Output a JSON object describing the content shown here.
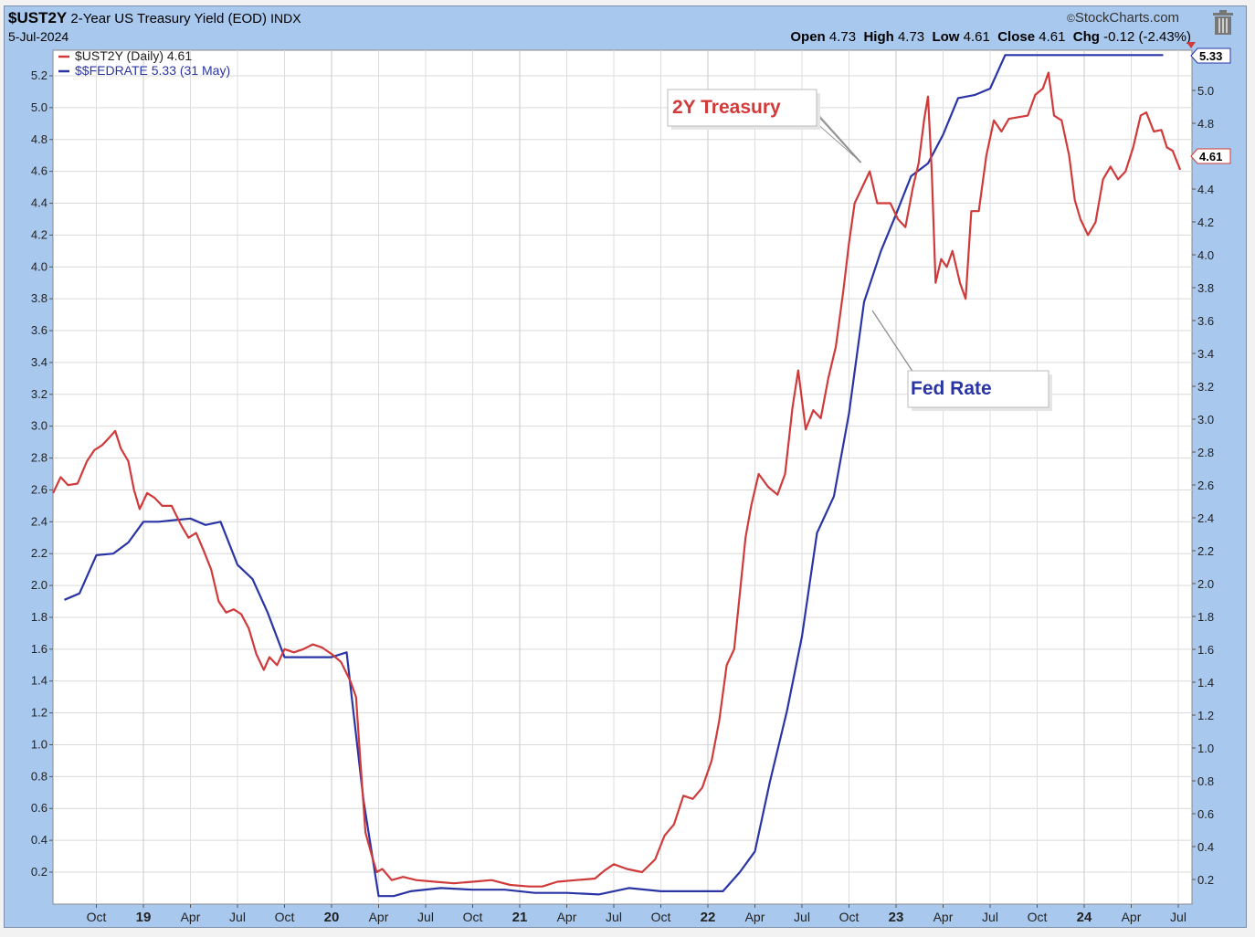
{
  "header": {
    "symbol": "$UST2Y",
    "description": "2-Year US Treasury Yield (EOD)",
    "exchange": "INDX",
    "date": "5-Jul-2024",
    "brand": "StockCharts.com",
    "open_label": "Open",
    "open": "4.73",
    "high_label": "High",
    "high": "4.73",
    "low_label": "Low",
    "low": "4.61",
    "close_label": "Close",
    "close": "4.61",
    "chg_label": "Chg",
    "chg": "-0.12 (-2.43%)"
  },
  "legend": {
    "ust2y": "$UST2Y (Daily) 4.61",
    "fedrate": "$$FEDRATE 5.33 (31 May)"
  },
  "annotations": {
    "treasury": "2Y Treasury",
    "fed": "Fed Rate"
  },
  "last_values": {
    "fed": "5.33",
    "ust2y": "4.61"
  },
  "colors": {
    "ust2y": "#d03a3a",
    "fedrate": "#2a35a5",
    "bg": "#a9c8ee"
  },
  "icons": {
    "brand": "copyright-icon",
    "trash": "trash-icon"
  },
  "chart_data": {
    "type": "line",
    "title": "$UST2Y 2-Year US Treasury Yield (EOD) INDX",
    "ylim": [
      0,
      5.35
    ],
    "y_ticks_left": [
      "0.2",
      "0.4",
      "0.6",
      "0.8",
      "1.0",
      "1.2",
      "1.4",
      "1.6",
      "1.8",
      "2.0",
      "2.2",
      "2.4",
      "2.6",
      "2.8",
      "3.0",
      "3.2",
      "3.4",
      "3.6",
      "3.8",
      "4.0",
      "4.2",
      "4.4",
      "4.6",
      "4.8",
      "5.0",
      "5.2"
    ],
    "y_ticks_right": [
      "0.2",
      "0.4",
      "0.6",
      "0.8",
      "1.0",
      "1.2",
      "1.4",
      "1.6",
      "1.8",
      "2.0",
      "2.2",
      "2.4",
      "2.6",
      "2.8",
      "3.0",
      "3.2",
      "3.4",
      "3.6",
      "3.8",
      "4.0",
      "4.2",
      "4.4",
      "4.6",
      "4.8",
      "5.0"
    ],
    "x_ticks": [
      {
        "t": 2018.75,
        "label": "Oct",
        "bold": false
      },
      {
        "t": 2019.0,
        "label": "19",
        "bold": true
      },
      {
        "t": 2019.25,
        "label": "Apr",
        "bold": false
      },
      {
        "t": 2019.5,
        "label": "Jul",
        "bold": false
      },
      {
        "t": 2019.75,
        "label": "Oct",
        "bold": false
      },
      {
        "t": 2020.0,
        "label": "20",
        "bold": true
      },
      {
        "t": 2020.25,
        "label": "Apr",
        "bold": false
      },
      {
        "t": 2020.5,
        "label": "Jul",
        "bold": false
      },
      {
        "t": 2020.75,
        "label": "Oct",
        "bold": false
      },
      {
        "t": 2021.0,
        "label": "21",
        "bold": true
      },
      {
        "t": 2021.25,
        "label": "Apr",
        "bold": false
      },
      {
        "t": 2021.5,
        "label": "Jul",
        "bold": false
      },
      {
        "t": 2021.75,
        "label": "Oct",
        "bold": false
      },
      {
        "t": 2022.0,
        "label": "22",
        "bold": true
      },
      {
        "t": 2022.25,
        "label": "Apr",
        "bold": false
      },
      {
        "t": 2022.5,
        "label": "Jul",
        "bold": false
      },
      {
        "t": 2022.75,
        "label": "Oct",
        "bold": false
      },
      {
        "t": 2023.0,
        "label": "23",
        "bold": true
      },
      {
        "t": 2023.25,
        "label": "Apr",
        "bold": false
      },
      {
        "t": 2023.5,
        "label": "Jul",
        "bold": false
      },
      {
        "t": 2023.75,
        "label": "Oct",
        "bold": false
      },
      {
        "t": 2024.0,
        "label": "24",
        "bold": true
      },
      {
        "t": 2024.25,
        "label": "Apr",
        "bold": false
      },
      {
        "t": 2024.5,
        "label": "Jul",
        "bold": false
      }
    ],
    "grid": true,
    "series": [
      {
        "name": "$UST2Y (Daily) 4.61",
        "color": "#d03a3a",
        "points": [
          [
            2018.52,
            2.58
          ],
          [
            2018.56,
            2.68
          ],
          [
            2018.6,
            2.63
          ],
          [
            2018.65,
            2.64
          ],
          [
            2018.7,
            2.78
          ],
          [
            2018.74,
            2.85
          ],
          [
            2018.78,
            2.88
          ],
          [
            2018.82,
            2.93
          ],
          [
            2018.85,
            2.97
          ],
          [
            2018.88,
            2.86
          ],
          [
            2018.92,
            2.78
          ],
          [
            2018.95,
            2.6
          ],
          [
            2018.98,
            2.48
          ],
          [
            2019.02,
            2.58
          ],
          [
            2019.06,
            2.55
          ],
          [
            2019.1,
            2.5
          ],
          [
            2019.15,
            2.5
          ],
          [
            2019.2,
            2.38
          ],
          [
            2019.24,
            2.3
          ],
          [
            2019.28,
            2.33
          ],
          [
            2019.32,
            2.22
          ],
          [
            2019.36,
            2.1
          ],
          [
            2019.4,
            1.9
          ],
          [
            2019.44,
            1.83
          ],
          [
            2019.48,
            1.85
          ],
          [
            2019.52,
            1.82
          ],
          [
            2019.56,
            1.73
          ],
          [
            2019.6,
            1.57
          ],
          [
            2019.64,
            1.47
          ],
          [
            2019.67,
            1.55
          ],
          [
            2019.71,
            1.5
          ],
          [
            2019.75,
            1.6
          ],
          [
            2019.8,
            1.58
          ],
          [
            2019.85,
            1.6
          ],
          [
            2019.9,
            1.63
          ],
          [
            2019.95,
            1.61
          ],
          [
            2020.0,
            1.57
          ],
          [
            2020.05,
            1.52
          ],
          [
            2020.1,
            1.4
          ],
          [
            2020.13,
            1.3
          ],
          [
            2020.15,
            0.95
          ],
          [
            2020.18,
            0.45
          ],
          [
            2020.21,
            0.32
          ],
          [
            2020.24,
            0.2
          ],
          [
            2020.27,
            0.22
          ],
          [
            2020.32,
            0.15
          ],
          [
            2020.38,
            0.17
          ],
          [
            2020.45,
            0.15
          ],
          [
            2020.55,
            0.14
          ],
          [
            2020.65,
            0.13
          ],
          [
            2020.75,
            0.14
          ],
          [
            2020.85,
            0.15
          ],
          [
            2020.95,
            0.12
          ],
          [
            2021.05,
            0.11
          ],
          [
            2021.12,
            0.11
          ],
          [
            2021.2,
            0.14
          ],
          [
            2021.3,
            0.15
          ],
          [
            2021.4,
            0.16
          ],
          [
            2021.45,
            0.21
          ],
          [
            2021.5,
            0.25
          ],
          [
            2021.57,
            0.22
          ],
          [
            2021.65,
            0.2
          ],
          [
            2021.72,
            0.28
          ],
          [
            2021.77,
            0.43
          ],
          [
            2021.82,
            0.5
          ],
          [
            2021.87,
            0.68
          ],
          [
            2021.92,
            0.66
          ],
          [
            2021.97,
            0.73
          ],
          [
            2022.02,
            0.9
          ],
          [
            2022.06,
            1.15
          ],
          [
            2022.1,
            1.5
          ],
          [
            2022.14,
            1.6
          ],
          [
            2022.17,
            1.95
          ],
          [
            2022.2,
            2.3
          ],
          [
            2022.23,
            2.5
          ],
          [
            2022.27,
            2.7
          ],
          [
            2022.32,
            2.62
          ],
          [
            2022.37,
            2.57
          ],
          [
            2022.41,
            2.7
          ],
          [
            2022.45,
            3.12
          ],
          [
            2022.48,
            3.35
          ],
          [
            2022.52,
            2.98
          ],
          [
            2022.56,
            3.1
          ],
          [
            2022.6,
            3.05
          ],
          [
            2022.64,
            3.3
          ],
          [
            2022.68,
            3.5
          ],
          [
            2022.72,
            3.85
          ],
          [
            2022.75,
            4.15
          ],
          [
            2022.78,
            4.4
          ],
          [
            2022.82,
            4.5
          ],
          [
            2022.86,
            4.6
          ],
          [
            2022.9,
            4.4
          ],
          [
            2022.94,
            4.4
          ],
          [
            2022.97,
            4.4
          ],
          [
            2023.01,
            4.3
          ],
          [
            2023.05,
            4.25
          ],
          [
            2023.09,
            4.5
          ],
          [
            2023.12,
            4.65
          ],
          [
            2023.15,
            4.93
          ],
          [
            2023.17,
            5.07
          ],
          [
            2023.19,
            4.6
          ],
          [
            2023.21,
            3.9
          ],
          [
            2023.24,
            4.05
          ],
          [
            2023.27,
            4.0
          ],
          [
            2023.3,
            4.1
          ],
          [
            2023.34,
            3.9
          ],
          [
            2023.37,
            3.8
          ],
          [
            2023.4,
            4.35
          ],
          [
            2023.44,
            4.35
          ],
          [
            2023.48,
            4.7
          ],
          [
            2023.52,
            4.92
          ],
          [
            2023.56,
            4.85
          ],
          [
            2023.6,
            4.93
          ],
          [
            2023.65,
            4.94
          ],
          [
            2023.7,
            4.95
          ],
          [
            2023.74,
            5.08
          ],
          [
            2023.78,
            5.12
          ],
          [
            2023.81,
            5.22
          ],
          [
            2023.84,
            4.95
          ],
          [
            2023.88,
            4.92
          ],
          [
            2023.92,
            4.7
          ],
          [
            2023.95,
            4.42
          ],
          [
            2023.98,
            4.3
          ],
          [
            2024.02,
            4.2
          ],
          [
            2024.06,
            4.28
          ],
          [
            2024.1,
            4.55
          ],
          [
            2024.14,
            4.63
          ],
          [
            2024.18,
            4.55
          ],
          [
            2024.22,
            4.6
          ],
          [
            2024.26,
            4.75
          ],
          [
            2024.3,
            4.95
          ],
          [
            2024.33,
            4.97
          ],
          [
            2024.37,
            4.85
          ],
          [
            2024.41,
            4.86
          ],
          [
            2024.44,
            4.75
          ],
          [
            2024.47,
            4.73
          ],
          [
            2024.51,
            4.61
          ]
        ]
      },
      {
        "name": "$$FEDRATE 5.33 (31 May)",
        "color": "#2a35a5",
        "points": [
          [
            2018.58,
            1.91
          ],
          [
            2018.66,
            1.95
          ],
          [
            2018.75,
            2.19
          ],
          [
            2018.84,
            2.2
          ],
          [
            2018.92,
            2.27
          ],
          [
            2019.0,
            2.4
          ],
          [
            2019.08,
            2.4
          ],
          [
            2019.16,
            2.41
          ],
          [
            2019.25,
            2.42
          ],
          [
            2019.33,
            2.38
          ],
          [
            2019.41,
            2.4
          ],
          [
            2019.5,
            2.13
          ],
          [
            2019.58,
            2.04
          ],
          [
            2019.66,
            1.83
          ],
          [
            2019.75,
            1.55
          ],
          [
            2019.83,
            1.55
          ],
          [
            2019.92,
            1.55
          ],
          [
            2020.0,
            1.55
          ],
          [
            2020.08,
            1.58
          ],
          [
            2020.17,
            0.65
          ],
          [
            2020.25,
            0.05
          ],
          [
            2020.33,
            0.05
          ],
          [
            2020.42,
            0.08
          ],
          [
            2020.58,
            0.1
          ],
          [
            2020.75,
            0.09
          ],
          [
            2020.92,
            0.09
          ],
          [
            2021.08,
            0.07
          ],
          [
            2021.25,
            0.07
          ],
          [
            2021.42,
            0.06
          ],
          [
            2021.58,
            0.1
          ],
          [
            2021.75,
            0.08
          ],
          [
            2021.92,
            0.08
          ],
          [
            2022.08,
            0.08
          ],
          [
            2022.17,
            0.2
          ],
          [
            2022.25,
            0.33
          ],
          [
            2022.33,
            0.77
          ],
          [
            2022.42,
            1.21
          ],
          [
            2022.5,
            1.68
          ],
          [
            2022.58,
            2.33
          ],
          [
            2022.67,
            2.56
          ],
          [
            2022.75,
            3.08
          ],
          [
            2022.83,
            3.78
          ],
          [
            2022.92,
            4.1
          ],
          [
            2023.0,
            4.33
          ],
          [
            2023.08,
            4.57
          ],
          [
            2023.17,
            4.65
          ],
          [
            2023.25,
            4.83
          ],
          [
            2023.33,
            5.06
          ],
          [
            2023.42,
            5.08
          ],
          [
            2023.5,
            5.12
          ],
          [
            2023.58,
            5.33
          ],
          [
            2023.75,
            5.33
          ],
          [
            2023.92,
            5.33
          ],
          [
            2024.08,
            5.33
          ],
          [
            2024.25,
            5.33
          ],
          [
            2024.42,
            5.33
          ]
        ]
      }
    ]
  }
}
